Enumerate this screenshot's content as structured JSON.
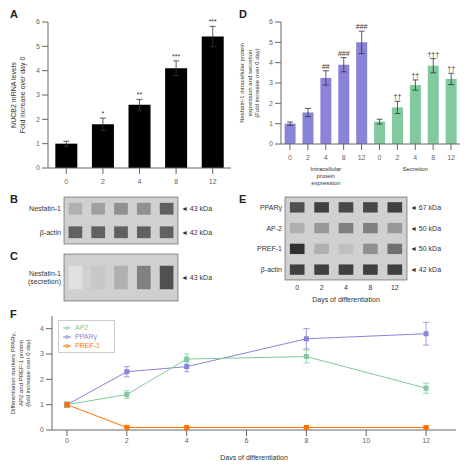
{
  "chart_data": [
    {
      "type": "bar",
      "title": "A",
      "categories": [
        "0",
        "2",
        "4",
        "8",
        "12"
      ],
      "values": [
        1.0,
        1.8,
        2.6,
        4.1,
        5.4
      ],
      "errors": [
        0.1,
        0.25,
        0.22,
        0.3,
        0.42
      ],
      "annotations": [
        null,
        "*",
        "**",
        "***",
        "***"
      ],
      "color": "#000000",
      "ylabel": "NUCB2 mRNA levels\nFold increase over day 0",
      "ylim": [
        0,
        6
      ],
      "yticks": [
        0,
        1,
        2,
        3,
        4,
        5,
        6
      ]
    },
    {
      "type": "bar",
      "title": "D",
      "categories": [
        "0",
        "2",
        "4",
        "8",
        "12",
        "0",
        "2",
        "4",
        "8",
        "12"
      ],
      "series": [
        {
          "name": "Intracellular\nprotein\nexpression",
          "color": "#8884d8",
          "values": [
            1.0,
            1.55,
            3.25,
            3.9,
            5.0,
            null,
            null,
            null,
            null,
            null
          ],
          "errors": [
            0.08,
            0.2,
            0.35,
            0.35,
            0.55,
            null,
            null,
            null,
            null,
            null
          ],
          "annotations": [
            null,
            null,
            "##",
            "###",
            "###",
            null,
            null,
            null,
            null,
            null
          ]
        },
        {
          "name": "Secretion",
          "color": "#82ca9d",
          "values": [
            null,
            null,
            null,
            null,
            null,
            1.1,
            1.8,
            2.9,
            3.85,
            3.2
          ],
          "errors": [
            null,
            null,
            null,
            null,
            null,
            0.12,
            0.3,
            0.25,
            0.35,
            0.28
          ],
          "annotations": [
            null,
            null,
            null,
            null,
            null,
            null,
            "††",
            "††",
            "†††",
            "††"
          ]
        }
      ],
      "ylabel": "Nesfatin-1 intracellular protein\nexpression and secretion\n(Fold increase over 0 day)",
      "ylim": [
        0,
        6
      ],
      "yticks": [
        0,
        1,
        2,
        3,
        4,
        5,
        6
      ]
    },
    {
      "type": "blot",
      "title": "B",
      "series": [
        {
          "name": "Nesfatin-1",
          "colors": [
            "#b0b0b0",
            "#a0a0a0",
            "#909090",
            "#909090",
            "#606060"
          ]
        },
        {
          "name": "β-actin",
          "colors": [
            "#606060",
            "#606060",
            "#606060",
            "#606060",
            "#606060"
          ]
        }
      ],
      "annotations": [
        "◄ 43 kDa",
        "◄ 42 kDa"
      ]
    },
    {
      "type": "blot",
      "title": "C",
      "series": [
        {
          "name": "Nesfatin-1\n(secretion)",
          "colors": [
            "#e0e0e0",
            "#c8c8c8",
            "#b0b0b0",
            "#808080",
            "#505050"
          ]
        }
      ],
      "annotations": [
        "◄ 43 kDa"
      ]
    },
    {
      "type": "blot",
      "title": "E",
      "categories": [
        0,
        2,
        4,
        8,
        12
      ],
      "xlabel": "Days of differentiation",
      "series": [
        {
          "name": "PPARγ",
          "colors": [
            "#505050",
            "#404040",
            "#484848",
            "#484848",
            "#404040"
          ]
        },
        {
          "name": "AP-2",
          "colors": [
            "#b0b0b0",
            "#989898",
            "#808080",
            "#808080",
            "#989898"
          ]
        },
        {
          "name": "PREF-1",
          "colors": [
            "#303030",
            "#b0b0b0",
            "#c0c0c0",
            "#909090",
            "#707070"
          ]
        },
        {
          "name": "β-actin",
          "colors": [
            "#404040",
            "#404040",
            "#404040",
            "#404040",
            "#404040"
          ]
        }
      ],
      "annotations": [
        "◄ 67 kDa",
        "◄ 50 kDa",
        "◄ 50 kDa",
        "◄ 42 kDa"
      ]
    },
    {
      "type": "line",
      "title": "F",
      "x": [
        0,
        2,
        4,
        8,
        12
      ],
      "marker": "square",
      "legend": "upper left",
      "series": [
        {
          "name": "PPARγ",
          "color": "#8884d8",
          "values": [
            1.0,
            2.3,
            2.5,
            3.6,
            3.8
          ],
          "errors": [
            0.1,
            0.2,
            0.2,
            0.4,
            0.45
          ]
        },
        {
          "name": "AP2",
          "color": "#82ca9d",
          "values": [
            1.0,
            1.4,
            2.8,
            2.9,
            1.65
          ],
          "errors": [
            0.1,
            0.15,
            0.2,
            0.25,
            0.2
          ]
        },
        {
          "name": "PREF-1",
          "color": "#ff7300",
          "values": [
            1.0,
            0.1,
            0.1,
            0.1,
            0.1
          ],
          "errors": [
            0.05,
            0.02,
            0.02,
            0.02,
            0.02
          ]
        }
      ],
      "xlabel": "Days of differentiation",
      "ylabel": "Differentiation markers PPARγ,\nAP2 and PREF-1 protein\n(fold increase over 0 day)",
      "xlim": [
        -0.5,
        13
      ],
      "xticks": [
        0,
        2,
        4,
        6,
        8,
        10,
        12
      ],
      "ylim": [
        0,
        4.5
      ],
      "yticks": [
        0,
        1,
        2,
        3,
        4
      ]
    }
  ]
}
